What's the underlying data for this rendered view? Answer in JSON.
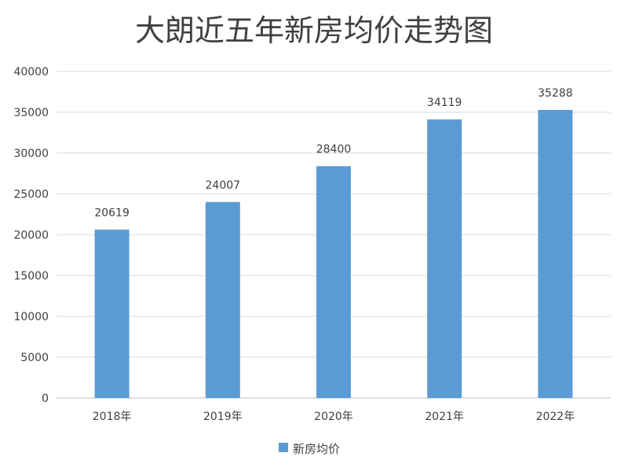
{
  "chart_data": {
    "type": "bar",
    "title": "大朗近五年新房均价走势图",
    "categories": [
      "2018年",
      "2019年",
      "2020年",
      "2021年",
      "2022年"
    ],
    "series": [
      {
        "name": "新房均价",
        "values": [
          20619,
          24007,
          28400,
          34119,
          35288
        ]
      }
    ],
    "ylim": [
      0,
      40000
    ],
    "yticks": [
      0,
      5000,
      10000,
      15000,
      20000,
      25000,
      30000,
      35000,
      40000
    ],
    "grid": true,
    "legend_position": "bottom",
    "data_labels": true,
    "colors": {
      "bar": "#5b9bd5",
      "grid": "#d9d9d9",
      "text": "#404040"
    }
  }
}
